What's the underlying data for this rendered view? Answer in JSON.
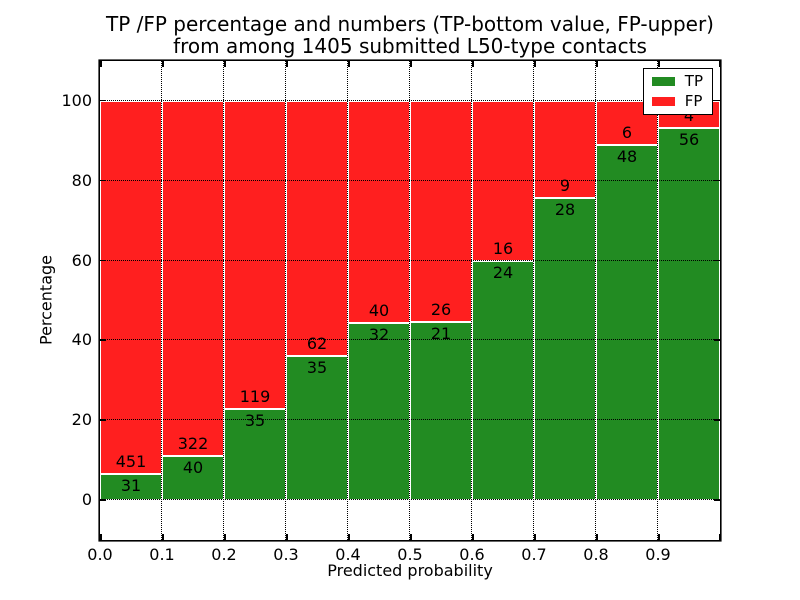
{
  "title": {
    "line1": "TP /FP percentage and numbers (TP-bottom value, FP-upper)",
    "line2": "from among 1405 submitted L50-type contacts"
  },
  "axes": {
    "xlabel": "Predicted probability",
    "ylabel": "Percentage",
    "x_tick_labels": [
      "0.0",
      "0.1",
      "0.2",
      "0.3",
      "0.4",
      "0.5",
      "0.6",
      "0.7",
      "0.8",
      "0.9"
    ],
    "y_tick_labels": [
      "0",
      "20",
      "40",
      "60",
      "80",
      "100"
    ],
    "y_tick_values": [
      0,
      20,
      40,
      60,
      80,
      100
    ]
  },
  "legend": {
    "entries": [
      {
        "label": "TP",
        "color": "#228b22"
      },
      {
        "label": "FP",
        "color": "#ff1f1f"
      }
    ]
  },
  "chart_data": {
    "type": "bar",
    "stacked": true,
    "title": "TP /FP percentage and numbers (TP-bottom value, FP-upper) from among 1405 submitted L50-type contacts",
    "xlabel": "Predicted probability",
    "ylabel": "Percentage",
    "bin_width": 0.1,
    "categories": [
      0.0,
      0.1,
      0.2,
      0.3,
      0.4,
      0.5,
      0.6,
      0.7,
      0.8,
      0.9
    ],
    "series": [
      {
        "name": "TP",
        "color": "#228b22",
        "values": [
          31,
          40,
          35,
          35,
          32,
          21,
          24,
          28,
          48,
          56
        ]
      },
      {
        "name": "FP",
        "color": "#ff1f1f",
        "values": [
          451,
          322,
          119,
          62,
          40,
          26,
          16,
          9,
          6,
          4
        ]
      }
    ],
    "total_contacts": 1405,
    "bars_normalized_to": "percent of bin total (TP+FP = 100%)",
    "xlim": [
      0,
      1.0
    ],
    "ylim": [
      -10,
      110
    ],
    "grid": true,
    "grid_style": "dotted",
    "legend_position": "upper right"
  }
}
